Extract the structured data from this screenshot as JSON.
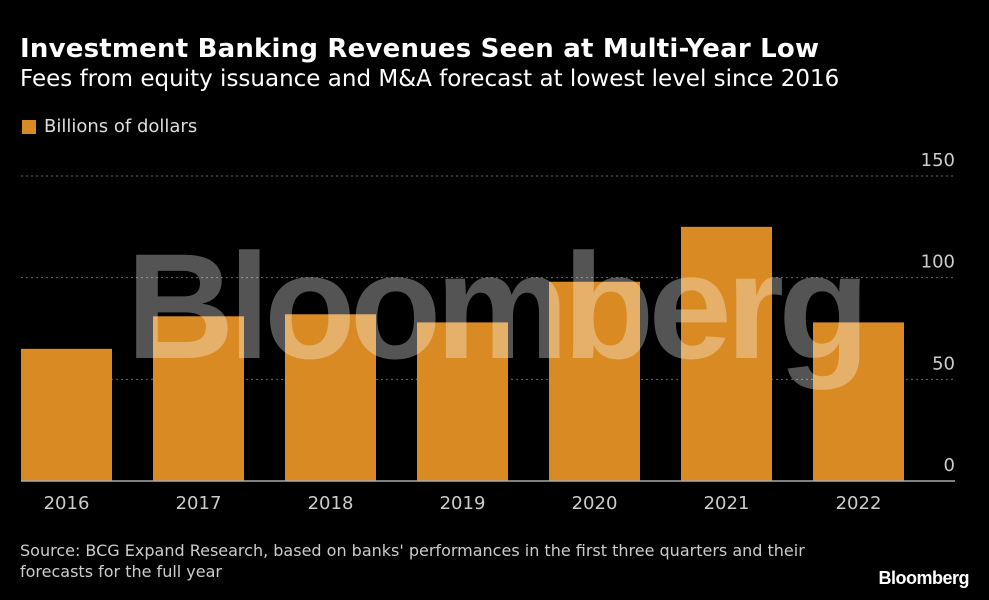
{
  "title": "Investment Banking Revenues Seen at Multi-Year Low",
  "subtitle": "Fees from equity issuance and M&A forecast at lowest level since 2016",
  "source": "Source: BCG Expand Research, based on banks' performances in the first three quarters and their forecasts for the full year",
  "watermark": "Bloomberg",
  "logo": "Bloomberg",
  "colors": {
    "bar": "#d98a22",
    "background": "#000000",
    "grid": "#666666"
  },
  "chart_data": {
    "type": "bar",
    "title": "Investment Banking Revenues Seen at Multi-Year Low",
    "legend": [
      "Billions of dollars"
    ],
    "legend_placement": "top-left",
    "categories": [
      "2016",
      "2017",
      "2018",
      "2019",
      "2020",
      "2021",
      "2022"
    ],
    "values": [
      65,
      81,
      82,
      78,
      98,
      125,
      78
    ],
    "ylim": [
      0,
      150
    ],
    "yticks": [
      0,
      50,
      100,
      150
    ],
    "y_axis_side": "right",
    "grid": true
  }
}
